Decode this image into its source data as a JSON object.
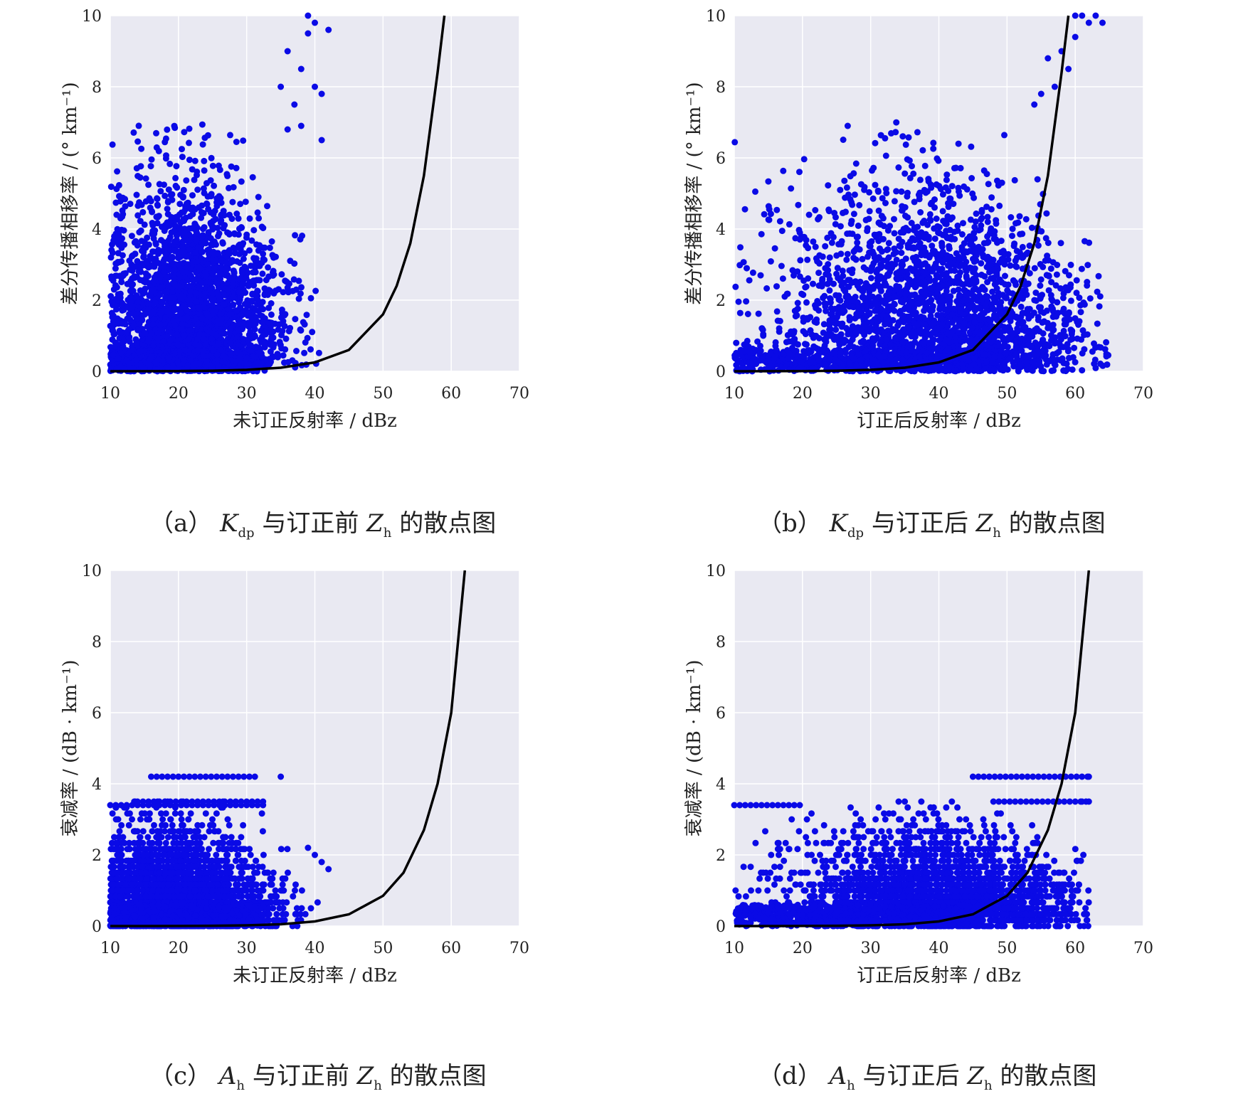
{
  "chart_data": [
    {
      "type": "scatter",
      "panel_label": "（a）",
      "caption_tail": "与订正前",
      "caption_var": "K",
      "caption_var_sub": "dp",
      "caption_z": "Z",
      "caption_z_sub": "h",
      "caption_end": "的散点图",
      "xlabel": "未订正反射率 / dBz",
      "ylabel": "差分传播相移率 / (° km⁻¹)",
      "xlim": [
        10,
        70
      ],
      "ylim": [
        0,
        10
      ],
      "xticks": [
        "10",
        "20",
        "30",
        "40",
        "50",
        "60",
        "70"
      ],
      "yticks": [
        "0",
        "2",
        "4",
        "6",
        "8",
        "10"
      ],
      "grid": true,
      "point_color": "#0a0ae6",
      "curve_color": "#000000",
      "points": {
        "cluster_center": [
          22,
          2.0
        ],
        "x_range": [
          10,
          42
        ],
        "y_range": [
          0,
          7
        ],
        "outliers": [
          [
            38,
            8.5
          ],
          [
            39,
            9.5
          ],
          [
            40,
            8.0
          ],
          [
            37,
            7.5
          ],
          [
            36,
            9.0
          ],
          [
            41,
            6.5
          ],
          [
            35,
            8.0
          ],
          [
            39,
            10
          ],
          [
            40,
            9.8
          ],
          [
            42,
            9.6
          ],
          [
            38,
            6.9
          ],
          [
            41,
            7.8
          ],
          [
            36,
            6.8
          ]
        ]
      },
      "curve": {
        "x": [
          10,
          15,
          20,
          25,
          30,
          35,
          40,
          45,
          50,
          52,
          54,
          56,
          58,
          59
        ],
        "y": [
          0,
          0.002,
          0.006,
          0.015,
          0.04,
          0.1,
          0.25,
          0.6,
          1.6,
          2.4,
          3.6,
          5.5,
          8.4,
          10
        ]
      }
    },
    {
      "type": "scatter",
      "panel_label": "（b）",
      "caption_tail": "与订正后",
      "caption_var": "K",
      "caption_var_sub": "dp",
      "caption_z": "Z",
      "caption_z_sub": "h",
      "caption_end": "的散点图",
      "xlabel": "订正后反射率 / dBz",
      "ylabel": "差分传播相移率 / (° km⁻¹)",
      "xlim": [
        10,
        70
      ],
      "ylim": [
        0,
        10
      ],
      "xticks": [
        "10",
        "20",
        "30",
        "40",
        "50",
        "60",
        "70"
      ],
      "yticks": [
        "0",
        "2",
        "4",
        "6",
        "8",
        "10"
      ],
      "grid": true,
      "point_color": "#0a0ae6",
      "curve_color": "#000000",
      "points": {
        "cluster_center": [
          40,
          2.0
        ],
        "x_range": [
          10,
          65
        ],
        "y_range": [
          0,
          7
        ],
        "outliers": [
          [
            58,
            9.0
          ],
          [
            60,
            10
          ],
          [
            62,
            9.8
          ],
          [
            59,
            8.5
          ],
          [
            57,
            8.0
          ],
          [
            61,
            10
          ],
          [
            55,
            7.8
          ],
          [
            63,
            10
          ],
          [
            56,
            8.8
          ],
          [
            60,
            9.4
          ],
          [
            54,
            7.5
          ],
          [
            64,
            9.8
          ]
        ]
      },
      "curve": {
        "x": [
          10,
          15,
          20,
          25,
          30,
          35,
          40,
          45,
          50,
          52,
          54,
          56,
          58,
          59
        ],
        "y": [
          0,
          0.002,
          0.006,
          0.015,
          0.04,
          0.1,
          0.25,
          0.6,
          1.6,
          2.4,
          3.6,
          5.5,
          8.4,
          10
        ]
      }
    },
    {
      "type": "scatter",
      "panel_label": "（c）",
      "caption_tail": "与订正前",
      "caption_var": "A",
      "caption_var_sub": "h",
      "caption_z": "Z",
      "caption_z_sub": "h",
      "caption_end": "的散点图",
      "xlabel": "未订正反射率 / dBz",
      "ylabel": "衰减率 / (dB · km⁻¹)",
      "xlim": [
        10,
        70
      ],
      "ylim": [
        0,
        10
      ],
      "xticks": [
        "10",
        "20",
        "30",
        "40",
        "50",
        "60",
        "70"
      ],
      "yticks": [
        "0",
        "2",
        "4",
        "6",
        "8",
        "10"
      ],
      "grid": true,
      "point_color": "#0a0ae6",
      "curve_color": "#000000",
      "points": {
        "cluster_center": [
          20,
          1.2
        ],
        "x_range": [
          10,
          42
        ],
        "y_range": [
          0,
          3.5
        ],
        "bands": [
          [
            4.2,
            16,
            32
          ],
          [
            3.4,
            10,
            33
          ],
          [
            3.5,
            14,
            33
          ]
        ],
        "outliers": [
          [
            35,
            4.2
          ],
          [
            40,
            2.0
          ],
          [
            41,
            1.8
          ],
          [
            42,
            1.6
          ],
          [
            39,
            2.2
          ]
        ]
      },
      "curve": {
        "x": [
          10,
          15,
          20,
          25,
          30,
          35,
          40,
          45,
          50,
          53,
          56,
          58,
          60,
          62
        ],
        "y": [
          0,
          0.001,
          0.003,
          0.008,
          0.02,
          0.05,
          0.13,
          0.33,
          0.85,
          1.5,
          2.7,
          4.0,
          6.0,
          10
        ]
      }
    },
    {
      "type": "scatter",
      "panel_label": "（d）",
      "caption_tail": "与订正后",
      "caption_var": "A",
      "caption_var_sub": "h",
      "caption_z": "Z",
      "caption_z_sub": "h",
      "caption_end": "的散点图",
      "xlabel": "订正后反射率 / dBz",
      "ylabel": "衰减率 / (dB · km⁻¹)",
      "xlim": [
        10,
        70
      ],
      "ylim": [
        0,
        10
      ],
      "xticks": [
        "10",
        "20",
        "30",
        "40",
        "50",
        "60",
        "70"
      ],
      "yticks": [
        "0",
        "2",
        "4",
        "6",
        "8",
        "10"
      ],
      "grid": true,
      "point_color": "#0a0ae6",
      "curve_color": "#000000",
      "points": {
        "cluster_center": [
          40,
          1.2
        ],
        "x_range": [
          10,
          62
        ],
        "y_range": [
          0,
          3.5
        ],
        "bands": [
          [
            4.2,
            45,
            62
          ],
          [
            3.4,
            10,
            20
          ],
          [
            3.5,
            48,
            62
          ]
        ],
        "outliers": [
          [
            62,
            4.2
          ],
          [
            61,
            3.5
          ],
          [
            62,
            3.5
          ]
        ]
      },
      "curve": {
        "x": [
          10,
          15,
          20,
          25,
          30,
          35,
          40,
          45,
          50,
          53,
          56,
          58,
          60,
          62
        ],
        "y": [
          0,
          0.001,
          0.003,
          0.008,
          0.02,
          0.05,
          0.13,
          0.33,
          0.85,
          1.5,
          2.7,
          4.0,
          6.0,
          10
        ]
      }
    }
  ]
}
